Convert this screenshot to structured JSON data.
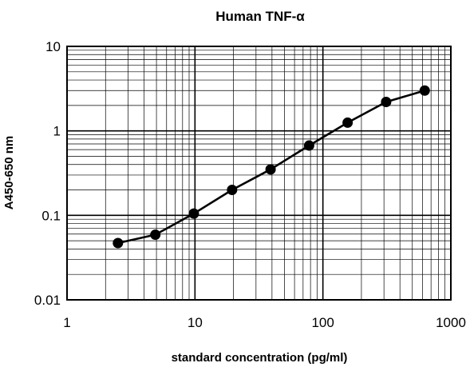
{
  "chart_data": {
    "type": "line",
    "title": "Human TNF-α",
    "xlabel": "standard concentration (pg/ml)",
    "ylabel": "A450-650 nm",
    "xscale": "log",
    "yscale": "log",
    "xlim": [
      1,
      1000
    ],
    "ylim": [
      0.01,
      10
    ],
    "x_tick_labels": [
      "1",
      "10",
      "100",
      "1000"
    ],
    "y_tick_labels": [
      "0.01",
      "0.1",
      "1",
      "10"
    ],
    "grid": true,
    "legend": "none",
    "line_color": "#000000",
    "marker": "filled-circle",
    "series": [
      {
        "x": [
          2.5,
          4.9,
          9.8,
          19.5,
          39,
          78,
          156,
          312,
          625
        ],
        "y": [
          0.047,
          0.059,
          0.105,
          0.2,
          0.35,
          0.67,
          1.25,
          2.2,
          3.0
        ]
      }
    ]
  }
}
